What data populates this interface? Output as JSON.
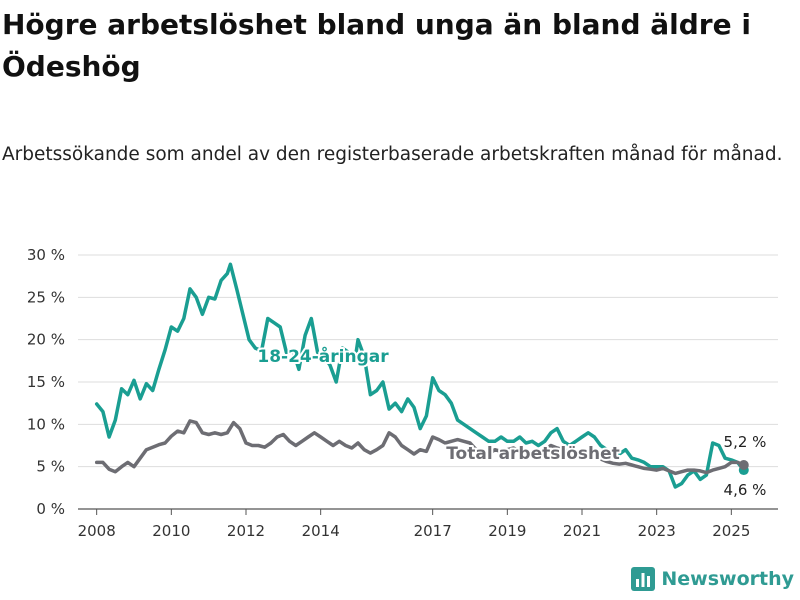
{
  "title": "Högre arbetslöshet bland unga än bland äldre i Ödeshög",
  "subtitle": "Arbetssökande som andel av den registerbaserade arbetskraften månad för månad.",
  "brand": {
    "name": "Newsworthy",
    "color": "#2f9b93"
  },
  "chart_data": {
    "type": "line",
    "x_type": "date",
    "ylim": [
      0,
      30
    ],
    "y_ticks": [
      0,
      5,
      10,
      15,
      20,
      25,
      30
    ],
    "y_tick_labels": [
      "0 %",
      "5 %",
      "10 %",
      "15 %",
      "20 %",
      "25 %",
      "30 %"
    ],
    "x_ticks": [
      "2008-01",
      "2010-01",
      "2012-01",
      "2014-01",
      "2017-01",
      "2019-01",
      "2021-01",
      "2023-01",
      "2025-01"
    ],
    "x_tick_labels": [
      "2008",
      "2010",
      "2012",
      "2014",
      "2017",
      "2019",
      "2021",
      "2023",
      "2025"
    ],
    "grid": true,
    "series": [
      {
        "name": "18-24-åringar",
        "color": "#1a9e92",
        "end_label": "4,6 %",
        "points": [
          [
            "2008-01",
            12.4
          ],
          [
            "2008-03",
            11.5
          ],
          [
            "2008-05",
            8.5
          ],
          [
            "2008-07",
            10.5
          ],
          [
            "2008-09",
            14.2
          ],
          [
            "2008-11",
            13.5
          ],
          [
            "2009-01",
            15.2
          ],
          [
            "2009-03",
            13.0
          ],
          [
            "2009-05",
            14.8
          ],
          [
            "2009-07",
            14.0
          ],
          [
            "2009-09",
            16.5
          ],
          [
            "2009-11",
            18.8
          ],
          [
            "2010-01",
            21.5
          ],
          [
            "2010-03",
            21.0
          ],
          [
            "2010-05",
            22.5
          ],
          [
            "2010-07",
            26.0
          ],
          [
            "2010-09",
            25.0
          ],
          [
            "2010-11",
            23.0
          ],
          [
            "2011-01",
            25.0
          ],
          [
            "2011-03",
            24.8
          ],
          [
            "2011-05",
            27.0
          ],
          [
            "2011-07",
            27.8
          ],
          [
            "2011-08",
            28.9
          ],
          [
            "2011-10",
            26.0
          ],
          [
            "2011-12",
            23.0
          ],
          [
            "2012-02",
            20.0
          ],
          [
            "2012-04",
            19.0
          ],
          [
            "2012-06",
            18.7
          ],
          [
            "2012-08",
            22.5
          ],
          [
            "2012-10",
            22.0
          ],
          [
            "2012-12",
            21.5
          ],
          [
            "2013-02",
            18.5
          ],
          [
            "2013-04",
            18.8
          ],
          [
            "2013-06",
            16.5
          ],
          [
            "2013-08",
            20.5
          ],
          [
            "2013-10",
            22.5
          ],
          [
            "2013-12",
            18.5
          ],
          [
            "2014-02",
            18.0
          ],
          [
            "2014-04",
            17.0
          ],
          [
            "2014-06",
            15.0
          ],
          [
            "2014-08",
            19.0
          ],
          [
            "2014-10",
            18.5
          ],
          [
            "2014-12",
            17.5
          ],
          [
            "2015-01",
            20.0
          ],
          [
            "2015-03",
            18.0
          ],
          [
            "2015-05",
            13.5
          ],
          [
            "2015-07",
            14.0
          ],
          [
            "2015-09",
            15.0
          ],
          [
            "2015-11",
            11.8
          ],
          [
            "2016-01",
            12.5
          ],
          [
            "2016-03",
            11.5
          ],
          [
            "2016-05",
            13.0
          ],
          [
            "2016-07",
            12.0
          ],
          [
            "2016-09",
            9.5
          ],
          [
            "2016-11",
            11.0
          ],
          [
            "2017-01",
            15.5
          ],
          [
            "2017-03",
            14.0
          ],
          [
            "2017-05",
            13.5
          ],
          [
            "2017-07",
            12.5
          ],
          [
            "2017-09",
            10.5
          ],
          [
            "2017-11",
            10.0
          ],
          [
            "2018-01",
            9.5
          ],
          [
            "2018-03",
            9.0
          ],
          [
            "2018-05",
            8.5
          ],
          [
            "2018-07",
            8.0
          ],
          [
            "2018-09",
            8.0
          ],
          [
            "2018-11",
            8.5
          ],
          [
            "2019-01",
            8.0
          ],
          [
            "2019-03",
            8.0
          ],
          [
            "2019-05",
            8.5
          ],
          [
            "2019-07",
            7.8
          ],
          [
            "2019-09",
            8.0
          ],
          [
            "2019-11",
            7.5
          ],
          [
            "2020-01",
            8.0
          ],
          [
            "2020-03",
            9.0
          ],
          [
            "2020-05",
            9.5
          ],
          [
            "2020-07",
            8.0
          ],
          [
            "2020-09",
            7.5
          ],
          [
            "2020-11",
            8.0
          ],
          [
            "2021-01",
            8.5
          ],
          [
            "2021-03",
            9.0
          ],
          [
            "2021-05",
            8.5
          ],
          [
            "2021-07",
            7.5
          ],
          [
            "2021-09",
            7.0
          ],
          [
            "2021-11",
            6.5
          ],
          [
            "2022-01",
            6.5
          ],
          [
            "2022-03",
            7.0
          ],
          [
            "2022-05",
            6.0
          ],
          [
            "2022-07",
            5.8
          ],
          [
            "2022-09",
            5.5
          ],
          [
            "2022-11",
            5.0
          ],
          [
            "2023-01",
            5.0
          ],
          [
            "2023-03",
            5.0
          ],
          [
            "2023-05",
            4.5
          ],
          [
            "2023-07",
            2.6
          ],
          [
            "2023-09",
            3.0
          ],
          [
            "2023-11",
            4.0
          ],
          [
            "2024-01",
            4.5
          ],
          [
            "2024-03",
            3.5
          ],
          [
            "2024-05",
            4.0
          ],
          [
            "2024-07",
            7.8
          ],
          [
            "2024-09",
            7.5
          ],
          [
            "2024-11",
            6.0
          ],
          [
            "2025-01",
            5.8
          ],
          [
            "2025-03",
            5.5
          ],
          [
            "2025-05",
            4.6
          ]
        ]
      },
      {
        "name": "Total arbetslöshet",
        "color": "#6d6d73",
        "end_label": "5,2 %",
        "points": [
          [
            "2008-01",
            5.5
          ],
          [
            "2008-03",
            5.5
          ],
          [
            "2008-05",
            4.7
          ],
          [
            "2008-07",
            4.4
          ],
          [
            "2008-09",
            5.0
          ],
          [
            "2008-11",
            5.5
          ],
          [
            "2009-01",
            5.0
          ],
          [
            "2009-03",
            6.0
          ],
          [
            "2009-05",
            7.0
          ],
          [
            "2009-07",
            7.3
          ],
          [
            "2009-09",
            7.6
          ],
          [
            "2009-11",
            7.8
          ],
          [
            "2010-01",
            8.6
          ],
          [
            "2010-03",
            9.2
          ],
          [
            "2010-05",
            9.0
          ],
          [
            "2010-07",
            10.4
          ],
          [
            "2010-09",
            10.2
          ],
          [
            "2010-11",
            9.0
          ],
          [
            "2011-01",
            8.8
          ],
          [
            "2011-03",
            9.0
          ],
          [
            "2011-05",
            8.8
          ],
          [
            "2011-07",
            9.0
          ],
          [
            "2011-09",
            10.2
          ],
          [
            "2011-11",
            9.5
          ],
          [
            "2012-01",
            7.8
          ],
          [
            "2012-03",
            7.5
          ],
          [
            "2012-05",
            7.5
          ],
          [
            "2012-07",
            7.3
          ],
          [
            "2012-09",
            7.8
          ],
          [
            "2012-11",
            8.5
          ],
          [
            "2013-01",
            8.8
          ],
          [
            "2013-03",
            8.0
          ],
          [
            "2013-05",
            7.5
          ],
          [
            "2013-07",
            8.0
          ],
          [
            "2013-09",
            8.5
          ],
          [
            "2013-11",
            9.0
          ],
          [
            "2014-01",
            8.5
          ],
          [
            "2014-03",
            8.0
          ],
          [
            "2014-05",
            7.5
          ],
          [
            "2014-07",
            8.0
          ],
          [
            "2014-09",
            7.5
          ],
          [
            "2014-11",
            7.2
          ],
          [
            "2015-01",
            7.8
          ],
          [
            "2015-03",
            7.0
          ],
          [
            "2015-05",
            6.6
          ],
          [
            "2015-07",
            7.0
          ],
          [
            "2015-09",
            7.5
          ],
          [
            "2015-11",
            9.0
          ],
          [
            "2016-01",
            8.5
          ],
          [
            "2016-03",
            7.5
          ],
          [
            "2016-05",
            7.0
          ],
          [
            "2016-07",
            6.5
          ],
          [
            "2016-09",
            7.0
          ],
          [
            "2016-11",
            6.8
          ],
          [
            "2017-01",
            8.5
          ],
          [
            "2017-03",
            8.2
          ],
          [
            "2017-05",
            7.8
          ],
          [
            "2017-07",
            8.0
          ],
          [
            "2017-09",
            8.2
          ],
          [
            "2017-11",
            8.0
          ],
          [
            "2018-01",
            7.8
          ],
          [
            "2018-03",
            7.0
          ],
          [
            "2018-05",
            6.8
          ],
          [
            "2018-07",
            6.5
          ],
          [
            "2018-09",
            7.0
          ],
          [
            "2018-11",
            6.8
          ],
          [
            "2019-01",
            7.0
          ],
          [
            "2019-03",
            7.2
          ],
          [
            "2019-05",
            6.8
          ],
          [
            "2019-07",
            6.5
          ],
          [
            "2019-09",
            6.8
          ],
          [
            "2019-11",
            6.8
          ],
          [
            "2020-01",
            7.0
          ],
          [
            "2020-03",
            7.5
          ],
          [
            "2020-05",
            7.2
          ],
          [
            "2020-07",
            7.0
          ],
          [
            "2020-09",
            6.8
          ],
          [
            "2020-11",
            6.5
          ],
          [
            "2021-01",
            6.6
          ],
          [
            "2021-03",
            6.4
          ],
          [
            "2021-05",
            6.2
          ],
          [
            "2021-07",
            5.9
          ],
          [
            "2021-09",
            5.6
          ],
          [
            "2021-11",
            5.4
          ],
          [
            "2022-01",
            5.3
          ],
          [
            "2022-03",
            5.4
          ],
          [
            "2022-05",
            5.2
          ],
          [
            "2022-07",
            5.0
          ],
          [
            "2022-09",
            4.8
          ],
          [
            "2022-11",
            4.7
          ],
          [
            "2023-01",
            4.6
          ],
          [
            "2023-03",
            4.8
          ],
          [
            "2023-05",
            4.5
          ],
          [
            "2023-07",
            4.2
          ],
          [
            "2023-09",
            4.4
          ],
          [
            "2023-11",
            4.6
          ],
          [
            "2024-01",
            4.6
          ],
          [
            "2024-03",
            4.5
          ],
          [
            "2024-05",
            4.3
          ],
          [
            "2024-07",
            4.6
          ],
          [
            "2024-09",
            4.8
          ],
          [
            "2024-11",
            5.0
          ],
          [
            "2025-01",
            5.5
          ],
          [
            "2025-03",
            5.5
          ],
          [
            "2025-05",
            5.2
          ]
        ]
      }
    ]
  }
}
